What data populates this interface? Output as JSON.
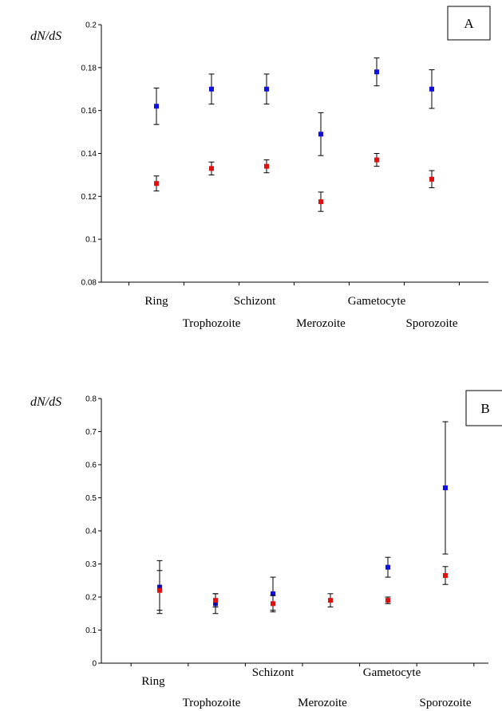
{
  "chart_data": [
    {
      "type": "scatter",
      "panel_label": "A",
      "ylabel": "dN/dS",
      "ylim": [
        0.08,
        0.2
      ],
      "yticks": [
        "0.2",
        "0.18",
        "0.16",
        "0.14",
        "0.12",
        "0.1",
        "0.08"
      ],
      "categories": [
        "Ring",
        "Trophozoite",
        "Schizont",
        "Merozoite",
        "Gametocyte",
        "Sporozoite"
      ],
      "series": [
        {
          "color": "#1010e0",
          "values": [
            0.162,
            0.17,
            0.17,
            0.149,
            0.178,
            0.17
          ],
          "err": [
            0.0085,
            0.007,
            0.007,
            0.01,
            0.0065,
            0.009
          ]
        },
        {
          "color": "#e01010",
          "values": [
            0.126,
            0.133,
            0.134,
            0.1175,
            0.137,
            0.128
          ],
          "err": [
            0.0035,
            0.003,
            0.003,
            0.0045,
            0.003,
            0.004
          ]
        }
      ]
    },
    {
      "type": "scatter",
      "panel_label": "B",
      "ylabel": "dN/dS",
      "ylim": [
        0,
        0.8
      ],
      "yticks": [
        "0.8",
        "0.7",
        "0.6",
        "0.5",
        "0.4",
        "0.3",
        "0.2",
        "0.1",
        "0"
      ],
      "categories": [
        "Ring",
        "Trophozoite",
        "Schizont",
        "Merozoite",
        "Gametocyte",
        "Sporozoite"
      ],
      "series": [
        {
          "color": "#1010e0",
          "values": [
            0.23,
            0.18,
            0.21,
            null,
            0.29,
            0.53
          ],
          "err": [
            0.08,
            0.03,
            0.05,
            null,
            0.03,
            0.2
          ]
        },
        {
          "color": "#e01010",
          "values": [
            0.22,
            0.19,
            0.18,
            0.19,
            0.19,
            0.265
          ],
          "err": [
            0.06,
            0.02,
            0.025,
            0.02,
            0.01,
            0.027
          ]
        }
      ]
    }
  ]
}
